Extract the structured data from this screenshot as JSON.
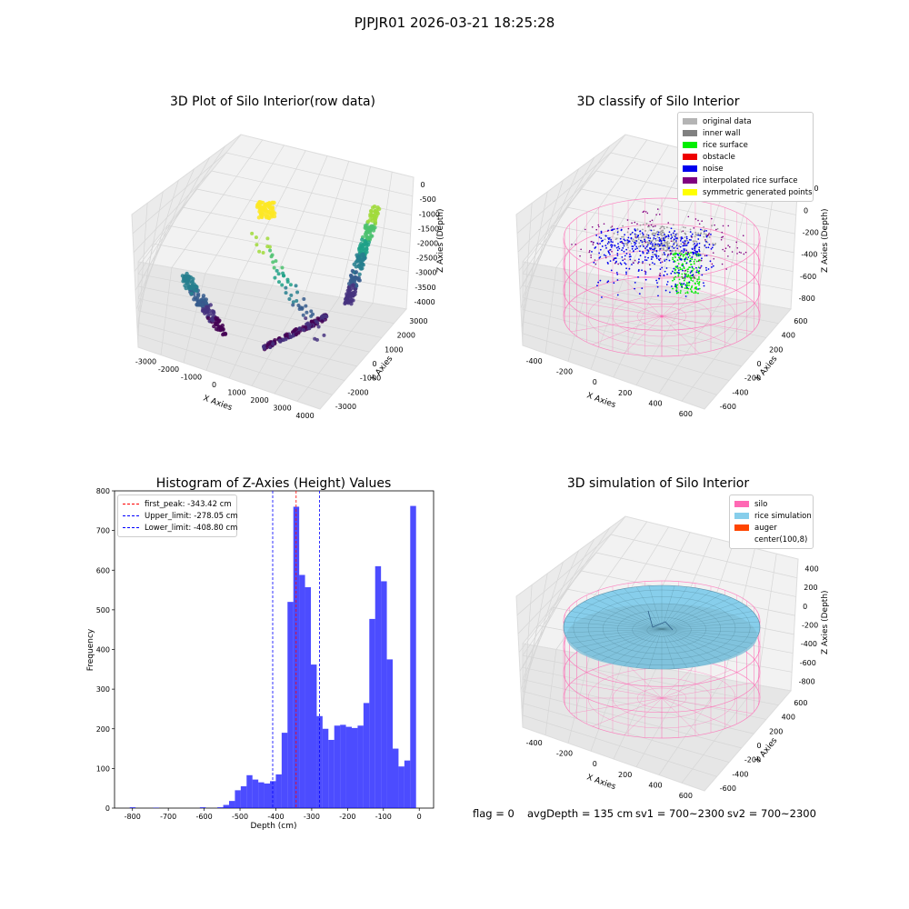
{
  "suptitle": "PJPJR01 2026-03-21 18:25:28",
  "panels": {
    "raw": {
      "title": "3D Plot of Silo Interior(row data)",
      "xlabel": "X Axies",
      "ylabel": "Y Axies",
      "zlabel": "Z Axies (Depth)",
      "xticks": [
        "-3000",
        "-2000",
        "-1000",
        "0",
        "1000",
        "2000",
        "3000",
        "4000"
      ],
      "yticks": [
        "-3000",
        "-2000",
        "-1000",
        "0",
        "1000",
        "2000",
        "3000"
      ],
      "zticks": [
        "0",
        "-500",
        "-1000",
        "-1500",
        "-2000",
        "-2500",
        "-3000",
        "-3500",
        "-4000"
      ]
    },
    "classify": {
      "title": "3D classify of Silo Interior",
      "xlabel": "X Axies",
      "ylabel": "Y Axies",
      "zlabel": "Z Axies (Depth)",
      "xticks": [
        "-400",
        "-200",
        "0",
        "200",
        "400",
        "600"
      ],
      "yticks": [
        "-600",
        "-400",
        "-200",
        "0",
        "200",
        "400",
        "600"
      ],
      "zticks": [
        "200",
        "0",
        "-200",
        "-400",
        "-600",
        "-800"
      ],
      "legend": [
        {
          "label": "original data",
          "color": "#b4b4b4"
        },
        {
          "label": "inner wall",
          "color": "#808080"
        },
        {
          "label": "rice surface",
          "color": "#00ee00"
        },
        {
          "label": "obstacle",
          "color": "#ee0000"
        },
        {
          "label": "noise",
          "color": "#0000ee"
        },
        {
          "label": "interpolated rice surface",
          "color": "#800080"
        },
        {
          "label": "symmetric generated points",
          "color": "#ffff00"
        }
      ]
    },
    "hist": {
      "title": "Histogram of Z-Axies (Height) Values",
      "xlabel": "Depth (cm)",
      "ylabel": "Frequency",
      "legend": [
        {
          "label": "first_peak: -343.42 cm",
          "color": "#ff0000"
        },
        {
          "label": "Upper_limit: -278.05 cm",
          "color": "#0000ff"
        },
        {
          "label": "Lower_limit: -408.80 cm",
          "color": "#0000ff"
        }
      ]
    },
    "sim": {
      "title": "3D simulation of Silo Interior",
      "xlabel": "X Axies",
      "ylabel": "Y Axies",
      "zlabel": "Z Axies (Depth)",
      "xticks": [
        "-400",
        "-200",
        "0",
        "200",
        "400",
        "600"
      ],
      "yticks": [
        "-600",
        "-400",
        "-200",
        "0",
        "200",
        "400",
        "600"
      ],
      "zticks": [
        "400",
        "200",
        "0",
        "-200",
        "-400",
        "-600",
        "-800"
      ],
      "legend": [
        {
          "label": "silo",
          "color": "#ff69b4"
        },
        {
          "label": "rice simulation",
          "color": "#87ceeb"
        },
        {
          "label": "auger",
          "color": "#ff4500"
        },
        {
          "label": "center(100,8)",
          "color": "none"
        }
      ]
    }
  },
  "status": {
    "flag": "flag = 0",
    "avg": "avgDepth = 135 cm",
    "sv1": "sv1 = 700~2300",
    "sv2": "sv2 = 700~2300"
  },
  "chart_data": {
    "type": "bar",
    "title": "Histogram of Z-Axies (Height) Values",
    "xlabel": "Depth (cm)",
    "ylabel": "Frequency",
    "xlim": [
      -850,
      40
    ],
    "ylim": [
      0,
      800
    ],
    "xticks": [
      -800,
      -700,
      -600,
      -500,
      -400,
      -300,
      -200,
      -100,
      0
    ],
    "yticks": [
      0,
      100,
      200,
      300,
      400,
      500,
      600,
      700,
      800
    ],
    "bin_width": 16.3,
    "bin_left_edges": [
      -807.6,
      -791.3,
      -775.0,
      -758.7,
      -742.4,
      -726.1,
      -709.8,
      -693.5,
      -677.2,
      -660.9,
      -644.6,
      -628.3,
      -612.0,
      -595.7,
      -579.4,
      -563.1,
      -546.8,
      -530.5,
      -514.2,
      -497.9,
      -481.6,
      -465.3,
      -449.0,
      -432.7,
      -416.4,
      -400.1,
      -383.8,
      -367.5,
      -351.2,
      -334.9,
      -318.6,
      -302.3,
      -286.0,
      -269.7,
      -253.4,
      -237.1,
      -220.8,
      -204.5,
      -188.2,
      -171.9,
      -155.6,
      -139.3,
      -123.0,
      -106.7,
      -90.4,
      -74.1,
      -57.8,
      -41.5,
      -25.2,
      -8.9
    ],
    "values": [
      2,
      0,
      0,
      0,
      1,
      0,
      0,
      0,
      0,
      0,
      0,
      0,
      2,
      0,
      0,
      2,
      8,
      18,
      45,
      55,
      83,
      72,
      65,
      62,
      68,
      85,
      190,
      520,
      760,
      588,
      557,
      362,
      232,
      200,
      172,
      208,
      210,
      205,
      202,
      208,
      265,
      477,
      610,
      572,
      375,
      150,
      105,
      120,
      762,
      0
    ],
    "series": [
      {
        "values": [
          2,
          0,
          0,
          0,
          1,
          0,
          0,
          0,
          0,
          0,
          0,
          0,
          2,
          0,
          0,
          2,
          8,
          18,
          45,
          55,
          83,
          72,
          65,
          62,
          68,
          85,
          190,
          520,
          760,
          588,
          557,
          362,
          232,
          200,
          172,
          208,
          210,
          205,
          202,
          208,
          265,
          477,
          610,
          572,
          375,
          150,
          105,
          120,
          762,
          0
        ],
        "color": "#0000ff"
      }
    ],
    "vlines": [
      {
        "label": "first_peak: -343.42 cm",
        "x": -343.42,
        "color": "#ff0000"
      },
      {
        "label": "Upper_limit: -278.05 cm",
        "x": -278.05,
        "color": "#0000ff"
      },
      {
        "label": "Lower_limit: -408.80 cm",
        "x": -408.8,
        "color": "#0000ff"
      }
    ],
    "grid": false,
    "legend": "top-left"
  }
}
